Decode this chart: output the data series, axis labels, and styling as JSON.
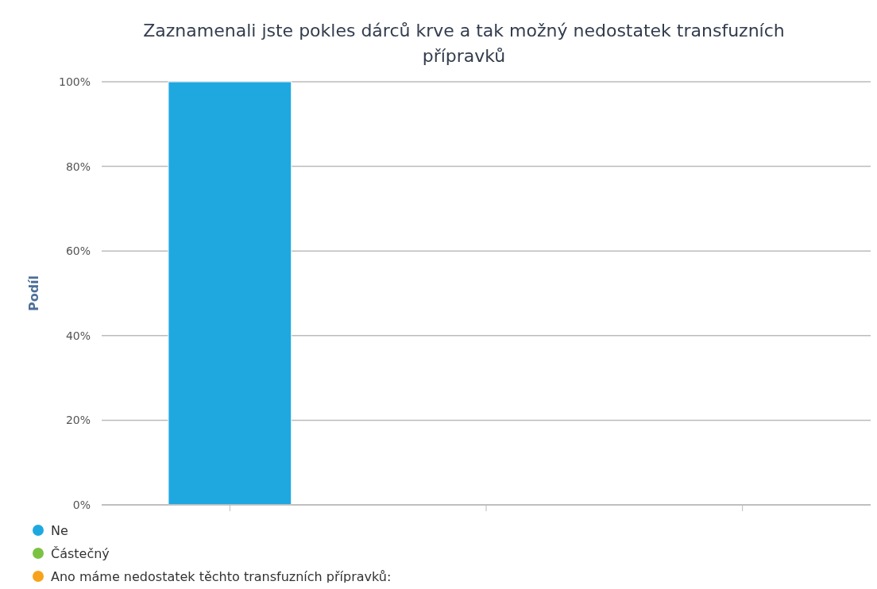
{
  "chart_data": {
    "type": "bar",
    "title": "Zaznamenali jste pokles dárců krve a tak možný nedostatek transfuzních přípravků",
    "ylabel": "Podíl",
    "categories": [
      null,
      null,
      null
    ],
    "series": [
      {
        "name": "Ne",
        "color": "#1fa8e0",
        "values": [
          100,
          null,
          null
        ]
      },
      {
        "name": "Částečný",
        "color": "#7cc242",
        "values": [
          null,
          0,
          null
        ]
      },
      {
        "name": "Ano máme nedostatek těchto transfuzních přípravků:",
        "color": "#f7a21b",
        "values": [
          null,
          null,
          0
        ]
      }
    ],
    "ylim": [
      0,
      100
    ],
    "yticks": [
      {
        "value": 0,
        "label": "0%"
      },
      {
        "value": 20,
        "label": "20%"
      },
      {
        "value": 40,
        "label": "40%"
      },
      {
        "value": 60,
        "label": "60%"
      },
      {
        "value": 80,
        "label": "80%"
      },
      {
        "value": 100,
        "label": "100%"
      }
    ],
    "grid": "y",
    "legend": "bottom left",
    "tick_labels": "y"
  }
}
